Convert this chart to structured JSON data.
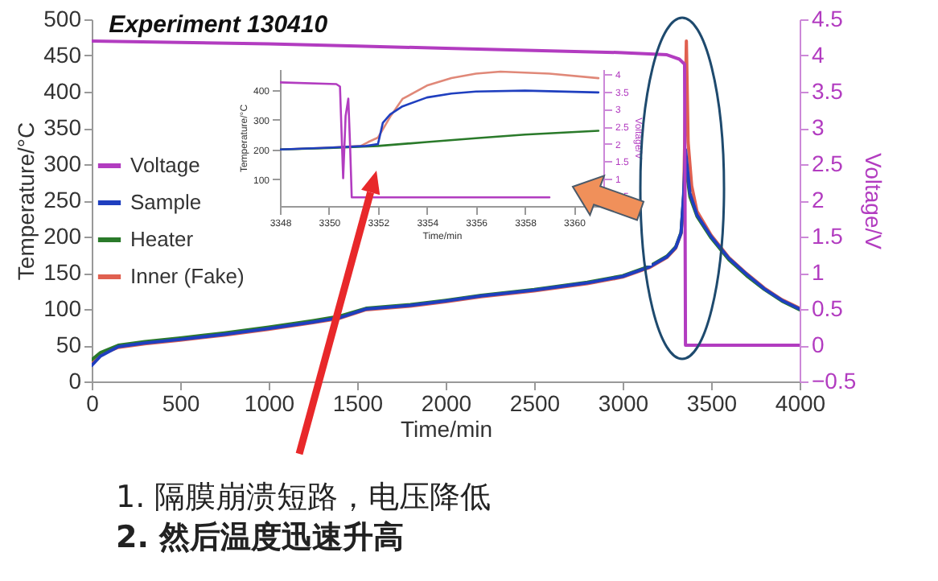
{
  "chart_data": [
    {
      "type": "line",
      "title": "Experiment 130410",
      "xlabel": "Time/min",
      "ylabel": "Temperature/°C",
      "y2label": "Voltage/V",
      "xlim": [
        0,
        4000
      ],
      "xticks": [
        0,
        500,
        1000,
        1500,
        2000,
        2500,
        3000,
        3500,
        4000
      ],
      "ylim": [
        0,
        500
      ],
      "yticks": [
        0,
        50,
        100,
        150,
        200,
        250,
        300,
        350,
        400,
        450,
        500
      ],
      "y2lim": [
        -0.5,
        4.5
      ],
      "y2ticks": [
        -0.5,
        0,
        0.5,
        1,
        1.5,
        2,
        2.5,
        3,
        3.5,
        4,
        4.5
      ],
      "legend": "left",
      "series": [
        {
          "name": "Voltage",
          "color": "#b23cc0",
          "axis": "y2",
          "x": [
            0,
            500,
            1000,
            1500,
            2000,
            2500,
            3000,
            3250,
            3320,
            3350,
            3355,
            4000
          ],
          "values": [
            4.2,
            4.18,
            4.16,
            4.13,
            4.1,
            4.07,
            4.04,
            4.01,
            3.95,
            3.88,
            0,
            0
          ]
        },
        {
          "name": "Sample",
          "color": "#1f3fbf",
          "x": [
            0,
            50,
            150,
            300,
            500,
            750,
            1000,
            1250,
            1400,
            1550,
            1800,
            2000,
            2200,
            2500,
            2800,
            3000,
            3150,
            3250,
            3300,
            3330,
            3345,
            3355,
            3380,
            3420,
            3500,
            3600,
            3700,
            3800,
            3900,
            4000
          ],
          "values": [
            22,
            35,
            48,
            53,
            58,
            65,
            73,
            82,
            88,
            100,
            105,
            111,
            118,
            126,
            136,
            145,
            158,
            172,
            185,
            205,
            260,
            320,
            260,
            230,
            200,
            170,
            148,
            128,
            112,
            100
          ]
        },
        {
          "name": "Heater",
          "color": "#2a7a2a",
          "x": [
            0,
            50,
            150,
            300,
            500,
            750,
            1000,
            1250,
            1400,
            1550,
            1800,
            2000,
            2200,
            2500,
            2800,
            3000,
            3150,
            3250,
            3300,
            3330,
            3345,
            3355,
            3380,
            3420,
            3500,
            3600,
            3700,
            3800,
            3900,
            4000
          ],
          "values": [
            30,
            40,
            50,
            55,
            60,
            67,
            75,
            84,
            90,
            101,
            106,
            112,
            119,
            127,
            137,
            146,
            159,
            173,
            186,
            206,
            255,
            300,
            255,
            228,
            198,
            168,
            146,
            127,
            111,
            99
          ]
        },
        {
          "name": "Inner (Fake)",
          "color": "#e06050",
          "x": [
            0,
            50,
            150,
            300,
            500,
            750,
            1000,
            1250,
            1400,
            1550,
            1800,
            2000,
            2200,
            2500,
            2800,
            3000,
            3150,
            3250,
            3300,
            3330,
            3345,
            3360,
            3370,
            3390,
            3420,
            3500,
            3600,
            3700,
            3800,
            3900,
            4000
          ],
          "values": [
            25,
            37,
            47,
            52,
            57,
            64,
            72,
            81,
            87,
            99,
            104,
            110,
            117,
            125,
            135,
            144,
            157,
            171,
            184,
            204,
            250,
            470,
            330,
            270,
            235,
            202,
            171,
            149,
            129,
            113,
            101
          ]
        }
      ],
      "annotations": [
        "1. 隔膜崩溃短路，电压降低",
        "2. 然后温度迅速升高"
      ]
    },
    {
      "type": "line",
      "xlabel": "Time/min",
      "ylabel": "Temperature/°C",
      "y2label": "Voltage/V",
      "xlim": [
        3348,
        3361.2
      ],
      "xticks": [
        3348,
        3350,
        3352,
        3354,
        3356,
        3358,
        3360
      ],
      "ylim": [
        10,
        470
      ],
      "yticks": [
        100,
        200,
        300,
        400
      ],
      "y2lim": [
        0.2,
        4.15
      ],
      "y2ticks": [
        0.5,
        1,
        1.5,
        2,
        2.5,
        3,
        3.5,
        4
      ],
      "series": [
        {
          "color": "#b23cc0",
          "axis": "y2",
          "x": [
            3348,
            3350.3,
            3350.45,
            3350.58,
            3350.68,
            3350.79,
            3350.86,
            3350.93,
            3359
          ],
          "values": [
            3.77,
            3.72,
            3.65,
            1.0,
            2.8,
            3.3,
            2.0,
            0.45,
            0.45
          ]
        },
        {
          "color": "#1f3fbf",
          "x": [
            3348,
            3350,
            3351.5,
            3352,
            3352.2,
            3352.5,
            3353,
            3354,
            3355,
            3356,
            3358,
            3361
          ],
          "values": [
            200,
            206,
            212,
            218,
            290,
            318,
            345,
            375,
            388,
            395,
            398,
            392
          ]
        },
        {
          "color": "#2a7a2a",
          "x": [
            3348,
            3350,
            3352,
            3354,
            3356,
            3358,
            3361
          ],
          "values": [
            200,
            205,
            212,
            225,
            238,
            250,
            263
          ]
        },
        {
          "color": "#e08878",
          "x": [
            3348,
            3350,
            3351.3,
            3351.6,
            3352,
            3352.5,
            3353,
            3354,
            3355,
            3356,
            3357,
            3359,
            3361
          ],
          "values": [
            200,
            206,
            212,
            225,
            240,
            310,
            370,
            415,
            440,
            455,
            462,
            455,
            440
          ]
        }
      ]
    }
  ]
}
